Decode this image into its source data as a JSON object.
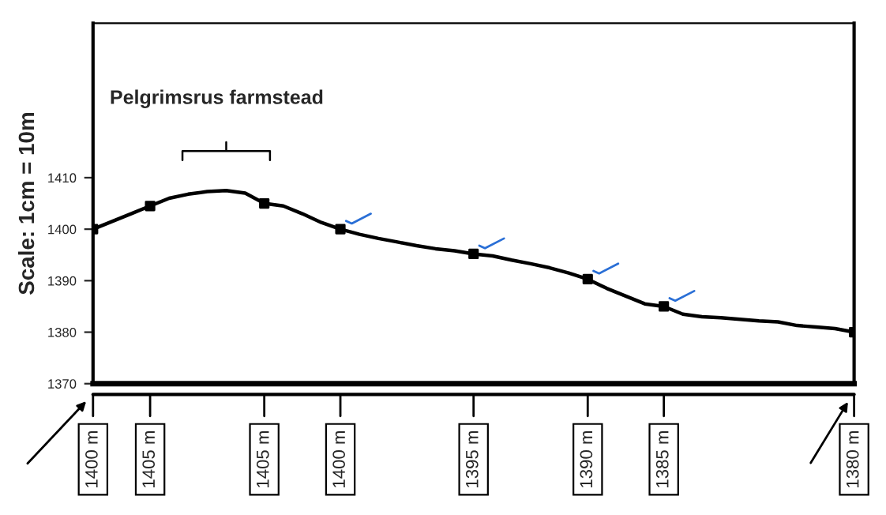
{
  "chart_data": {
    "type": "line",
    "ylabel": "Scale: 1cm = 10m",
    "categories": [
      null,
      null,
      null,
      null,
      null,
      null,
      null,
      null,
      null,
      null,
      null,
      null,
      null,
      null,
      null,
      null,
      null,
      null,
      null,
      null,
      null,
      null,
      null,
      null,
      null,
      null,
      null,
      null,
      null,
      null,
      null,
      null,
      null,
      null,
      null,
      null,
      null,
      null,
      null,
      null,
      null
    ],
    "series": [
      {
        "color": "#000000",
        "values": [
          1400,
          1401.5,
          1403,
          1404.5,
          1406,
          1406.8,
          1407.3,
          1407.5,
          1407,
          1405,
          1404.5,
          1403,
          1401.3,
          1400,
          1399,
          1398.2,
          1397.5,
          1396.8,
          1396.2,
          1395.8,
          1395.2,
          1394.8,
          1394,
          1393.3,
          1392.5,
          1391.5,
          1390.3,
          1388.5,
          1387,
          1385.5,
          1385,
          1383.5,
          1383,
          1382.8,
          1382.5,
          1382.2,
          1382,
          1381.3,
          1381,
          1380.7,
          1380
        ]
      },
      {
        "type": "scatter",
        "color": "#000000",
        "marker": "square",
        "values": [
          1400,
          null,
          null,
          1404.5,
          null,
          null,
          null,
          null,
          null,
          1405,
          null,
          null,
          null,
          1400,
          null,
          null,
          null,
          null,
          null,
          null,
          1395.2,
          null,
          null,
          null,
          null,
          null,
          1390.3,
          null,
          null,
          null,
          1385,
          null,
          null,
          null,
          null,
          null,
          null,
          null,
          null,
          null,
          1380
        ],
        "value_labels": [
          "1400 m",
          null,
          null,
          "1405 m",
          null,
          null,
          null,
          null,
          null,
          "1405 m",
          null,
          null,
          null,
          "1400 m",
          null,
          null,
          null,
          null,
          null,
          null,
          "1395 m",
          null,
          null,
          null,
          null,
          null,
          "1390 m",
          null,
          null,
          null,
          "1385 m",
          null,
          null,
          null,
          null,
          null,
          null,
          null,
          null,
          null,
          "1380 m"
        ]
      }
    ],
    "annotations": [
      "Pelgrimsrus farmstead"
    ],
    "ylim": [
      1370,
      1440
    ],
    "yticks": [
      1370,
      1380,
      1390,
      1400,
      1410
    ],
    "tick_labels": "y",
    "grid": false,
    "legend": false
  }
}
